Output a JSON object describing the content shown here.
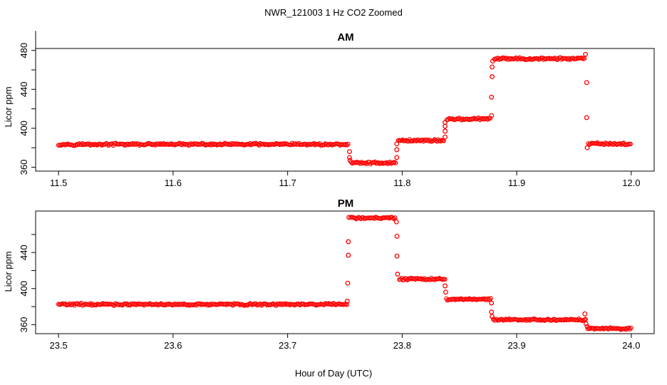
{
  "figure": {
    "title": "NWR_121003  1 Hz CO2 Zoomed",
    "xlabel": "Hour of Day (UTC)"
  },
  "chart_data": [
    {
      "type": "scatter",
      "title": "AM",
      "ylabel": "Licor ppm",
      "xlim": [
        11.48,
        12.02
      ],
      "ylim": [
        356,
        482
      ],
      "xticks": [
        "11.5",
        "11.6",
        "11.7",
        "11.8",
        "11.9",
        "12.0"
      ],
      "yticks": [
        "360",
        "400",
        "440",
        "480"
      ],
      "point_color": "#ff0000",
      "segments": [
        {
          "x0": 11.5,
          "x1": 11.7535,
          "y": 383.5
        },
        {
          "x0": 11.7555,
          "x1": 11.7945,
          "y": 364.5
        },
        {
          "x0": 11.7965,
          "x1": 11.837,
          "y": 387.5
        },
        {
          "x0": 11.839,
          "x1": 11.8775,
          "y": 409.5
        },
        {
          "x0": 11.8805,
          "x1": 11.9595,
          "y": 471.5
        },
        {
          "x0": 11.9625,
          "x1": 12.0,
          "y": 384.0
        }
      ],
      "transition_points": [
        [
          11.754,
          376
        ],
        [
          11.754,
          370
        ],
        [
          11.7545,
          367
        ],
        [
          11.7953,
          370
        ],
        [
          11.7953,
          378
        ],
        [
          11.7953,
          384
        ],
        [
          11.8375,
          391
        ],
        [
          11.8375,
          397
        ],
        [
          11.8375,
          402
        ],
        [
          11.8375,
          406
        ],
        [
          11.878,
          413
        ],
        [
          11.878,
          432
        ],
        [
          11.8785,
          453
        ],
        [
          11.8785,
          463
        ],
        [
          11.879,
          469
        ],
        [
          11.96,
          476
        ],
        [
          11.961,
          447
        ],
        [
          11.961,
          411
        ],
        [
          11.9615,
          380
        ]
      ]
    },
    {
      "type": "scatter",
      "title": "PM",
      "ylabel": "Licor ppm",
      "xlim": [
        23.48,
        24.02
      ],
      "ylim": [
        350,
        486
      ],
      "xticks": [
        "23.5",
        "23.6",
        "23.7",
        "23.8",
        "23.9",
        "24.0"
      ],
      "yticks": [
        "360",
        "400",
        "440"
      ],
      "point_color": "#ff0000",
      "segments": [
        {
          "x0": 23.5,
          "x1": 23.752,
          "y": 382.5
        },
        {
          "x0": 23.755,
          "x1": 23.7945,
          "y": 478.5
        },
        {
          "x0": 23.7975,
          "x1": 23.8375,
          "y": 410.5
        },
        {
          "x0": 23.8385,
          "x1": 23.8775,
          "y": 388.0
        },
        {
          "x0": 23.8795,
          "x1": 23.9595,
          "y": 365.5
        },
        {
          "x0": 23.962,
          "x1": 24.0,
          "y": 355.5
        }
      ],
      "transition_points": [
        [
          23.752,
          386
        ],
        [
          23.7525,
          406
        ],
        [
          23.753,
          437
        ],
        [
          23.753,
          452
        ],
        [
          23.7535,
          479
        ],
        [
          23.795,
          474
        ],
        [
          23.7955,
          458
        ],
        [
          23.7955,
          436
        ],
        [
          23.796,
          416
        ],
        [
          23.8375,
          403
        ],
        [
          23.838,
          396
        ],
        [
          23.878,
          384
        ],
        [
          23.878,
          374
        ],
        [
          23.8785,
          369
        ],
        [
          23.9595,
          372
        ],
        [
          23.96,
          366
        ],
        [
          23.9605,
          361
        ],
        [
          23.9615,
          358
        ]
      ]
    }
  ]
}
